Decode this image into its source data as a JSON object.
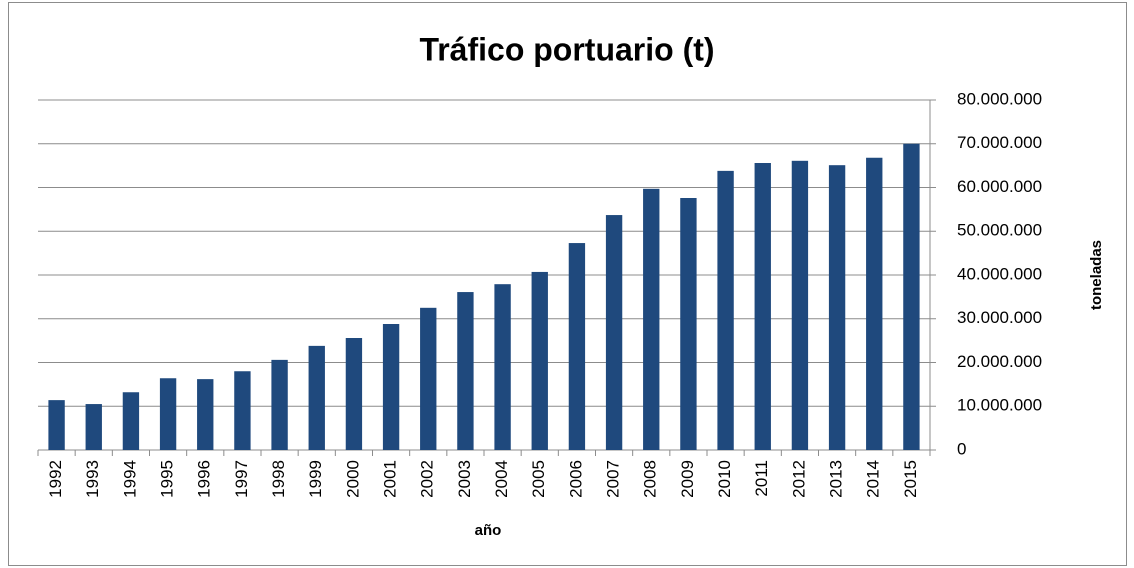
{
  "chart_data": {
    "type": "bar",
    "title": "Tráfico portuario (t)",
    "x_label": "año",
    "y_label": "toneladas",
    "categories": [
      "1992",
      "1993",
      "1994",
      "1995",
      "1996",
      "1997",
      "1998",
      "1999",
      "2000",
      "2001",
      "2002",
      "2003",
      "2004",
      "2005",
      "2006",
      "2007",
      "2008",
      "2009",
      "2010",
      "2011",
      "2012",
      "2013",
      "2014",
      "2015"
    ],
    "values": [
      11400000,
      10500000,
      13200000,
      16400000,
      16200000,
      18000000,
      20600000,
      23800000,
      25600000,
      28800000,
      32500000,
      36100000,
      37900000,
      40700000,
      47300000,
      53700000,
      59700000,
      57600000,
      63800000,
      65600000,
      66100000,
      65100000,
      66800000,
      70000000
    ],
    "color": "#1f497d",
    "ylim": [
      0,
      80000000
    ],
    "yticks": [
      0,
      {
        "value": 10000000,
        "label": "10.000.000"
      },
      {
        "value": 20000000,
        "label": "20.000.000"
      },
      {
        "value": 30000000,
        "label": "30.000.000"
      },
      {
        "value": 40000000,
        "label": "40.000.000"
      },
      {
        "value": 50000000,
        "label": "50.000.000"
      },
      {
        "value": 60000000,
        "label": "60.000.000"
      },
      {
        "value": 70000000,
        "label": "70.000.000"
      },
      {
        "value": 80000000,
        "label": "80.000.000"
      }
    ],
    "grid": true,
    "y_axis_side": "right"
  }
}
